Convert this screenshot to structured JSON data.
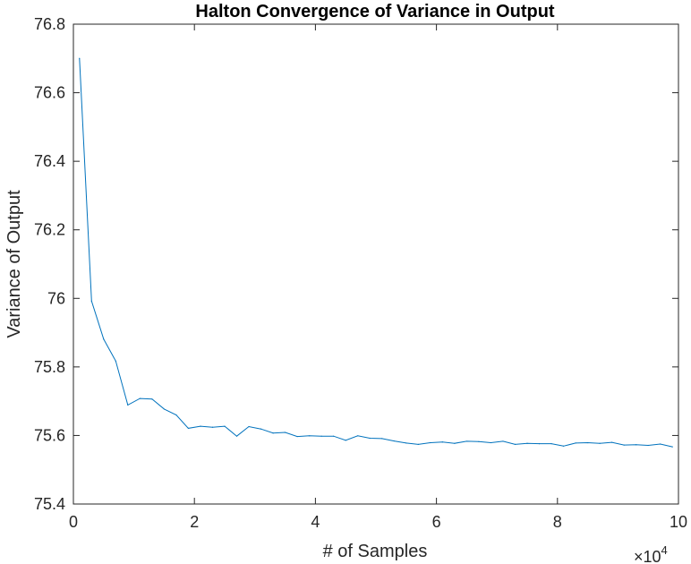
{
  "chart_data": {
    "type": "line",
    "title": "Halton Convergence of Variance in Output",
    "xlabel": "# of Samples",
    "ylabel": "Variance of Output",
    "x_exponent_label": "×10",
    "x_exponent_power": "4",
    "xlim": [
      0,
      10
    ],
    "ylim": [
      75.4,
      76.8
    ],
    "xticks": [
      0,
      2,
      4,
      6,
      8,
      10
    ],
    "xtick_labels": [
      "0",
      "2",
      "4",
      "6",
      "8",
      "10"
    ],
    "yticks": [
      75.4,
      75.6,
      75.8,
      76.0,
      76.2,
      76.4,
      76.6,
      76.8
    ],
    "ytick_labels": [
      "75.4",
      "75.6",
      "75.8",
      "76",
      "76.2",
      "76.4",
      "76.6",
      "76.8"
    ],
    "grid": false,
    "series": [
      {
        "color": "#0072BD",
        "x": [
          0.1,
          0.3,
          0.5,
          0.7,
          0.9,
          1.1,
          1.3,
          1.5,
          1.7,
          1.9,
          2.1,
          2.3,
          2.5,
          2.7,
          2.9,
          3.1,
          3.3,
          3.5,
          3.7,
          3.9,
          4.1,
          4.3,
          4.5,
          4.7,
          4.9,
          5.1,
          5.3,
          5.5,
          5.7,
          5.9,
          6.1,
          6.3,
          6.5,
          6.7,
          6.9,
          7.1,
          7.3,
          7.5,
          7.7,
          7.9,
          8.1,
          8.3,
          8.5,
          8.7,
          8.9,
          9.1,
          9.3,
          9.5,
          9.7,
          9.9
        ],
        "y": [
          76.7,
          75.992,
          75.881,
          75.817,
          75.689,
          75.708,
          75.706,
          75.677,
          75.66,
          75.621,
          75.627,
          75.624,
          75.627,
          75.598,
          75.626,
          75.619,
          75.607,
          75.609,
          75.597,
          75.599,
          75.598,
          75.598,
          75.586,
          75.599,
          75.592,
          75.591,
          75.584,
          75.578,
          75.574,
          75.579,
          75.581,
          75.577,
          75.583,
          75.582,
          75.579,
          75.583,
          75.574,
          75.577,
          75.576,
          75.576,
          75.569,
          75.578,
          75.579,
          75.577,
          75.58,
          75.572,
          75.573,
          75.571,
          75.575,
          75.567
        ]
      }
    ]
  }
}
